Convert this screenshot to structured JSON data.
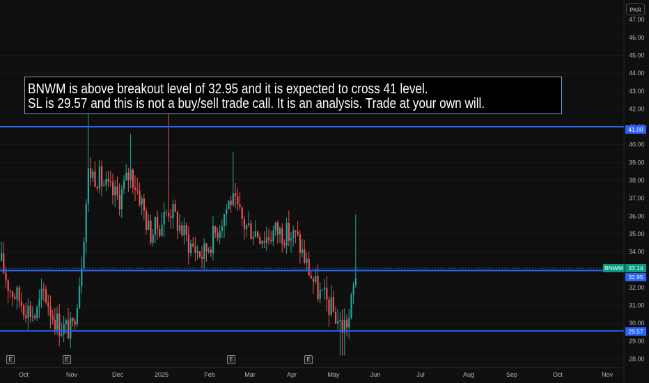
{
  "currency": "PKR",
  "annotation": {
    "line1": "BNWM is above breakout level of 32.95 and it is expected to cross 41 level.",
    "line2": "SL is 29.57 and this is not a buy/sell trade call. It is an analysis. Trade at your own will."
  },
  "symbol_label": "BNWM",
  "last_price": "33.14",
  "levels": [
    {
      "value": 41.0,
      "label": "41.00"
    },
    {
      "value": 32.95,
      "label": "32.95"
    },
    {
      "value": 29.57,
      "label": "29.57"
    }
  ],
  "earnings_marker": "E",
  "colors": {
    "up": "#26a69a",
    "down": "#ef5350",
    "level": "#2962ff",
    "tag": "#089981",
    "background": "#0f0f0f"
  },
  "chart_data": {
    "type": "candlestick",
    "symbol": "BNWM",
    "ylim": [
      28,
      47
    ],
    "y_ticks": [
      "28.00",
      "29.00",
      "30.00",
      "31.00",
      "32.00",
      "33.00",
      "34.00",
      "35.00",
      "36.00",
      "37.00",
      "38.00",
      "39.00",
      "40.00",
      "41.00",
      "42.00",
      "43.00",
      "44.00",
      "45.00",
      "46.00",
      "47.00"
    ],
    "x_ticks": [
      "Oct",
      "Nov",
      "Dec",
      "2025",
      "Feb",
      "Mar",
      "Apr",
      "May",
      "Jun",
      "Jul",
      "Aug",
      "Sep",
      "Oct",
      "Nov"
    ],
    "horizontal_lines": [
      41.0,
      32.95,
      29.57
    ],
    "last_price": 33.14,
    "earnings_events": [
      "Oct",
      "Nov",
      "Feb",
      "Apr"
    ],
    "price_path": [
      [
        "Sep 20",
        33.5
      ],
      [
        "Sep 25",
        32.0
      ],
      [
        "Oct 1",
        31.0
      ],
      [
        "Oct 8",
        30.4
      ],
      [
        "Oct 15",
        31.8
      ],
      [
        "Oct 22",
        30.5
      ],
      [
        "Oct 29",
        29.8
      ],
      [
        "Nov 5",
        29.6
      ],
      [
        "Nov 12",
        33.0
      ],
      [
        "Nov 19",
        38.5
      ],
      [
        "Nov 26",
        38.2
      ],
      [
        "Dec 3",
        37.4
      ],
      [
        "Dec 10",
        37.0
      ],
      [
        "Dec 17",
        38.5
      ],
      [
        "Dec 24",
        37.1
      ],
      [
        "Dec 31",
        35.0
      ],
      [
        "Jan 7",
        35.5
      ],
      [
        "Jan 14",
        36.5
      ],
      [
        "Jan 21",
        35.5
      ],
      [
        "Jan 28",
        34.5
      ],
      [
        "Feb 4",
        33.8
      ],
      [
        "Feb 11",
        35.2
      ],
      [
        "Feb 18",
        37.0
      ],
      [
        "Feb 25",
        35.5
      ],
      [
        "Mar 4",
        35.2
      ],
      [
        "Mar 11",
        34.8
      ],
      [
        "Mar 18",
        35.2
      ],
      [
        "Mar 25",
        35.0
      ],
      [
        "Apr 1",
        34.8
      ],
      [
        "Apr 8",
        33.2
      ],
      [
        "Apr 15",
        31.8
      ],
      [
        "Apr 22",
        31.2
      ],
      [
        "Apr 29",
        30.6
      ],
      [
        "May 6",
        29.8
      ],
      [
        "May 10",
        30.2
      ],
      [
        "May 15",
        33.14
      ]
    ]
  }
}
